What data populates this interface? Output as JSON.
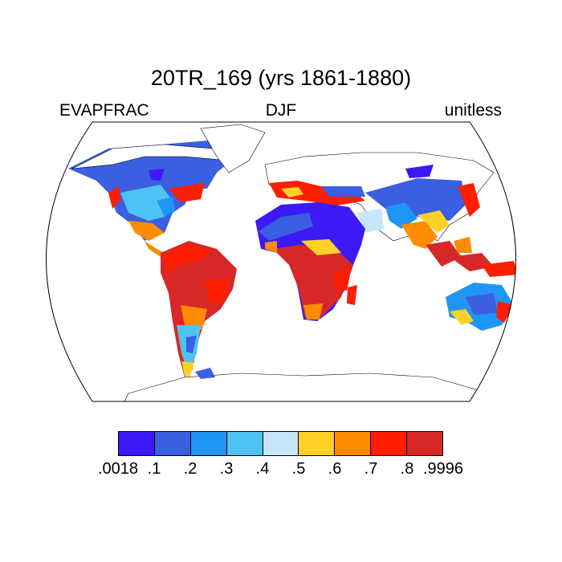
{
  "title": "20TR_169 (yrs 1861-1880)",
  "left_label": "EVAPFRAC",
  "center_label": "DJF",
  "right_label": "unitless",
  "projection": "Robinson",
  "colorbar": {
    "colors": [
      "#3b1af5",
      "#3a5fe0",
      "#1e96f5",
      "#50c3f5",
      "#c8e6fa",
      "#ffd128",
      "#ff8c00",
      "#ff1e00",
      "#d72828"
    ],
    "labels": [
      ".0018",
      ".1",
      ".2",
      ".3",
      ".4",
      ".5",
      ".6",
      ".7",
      ".8",
      ".9996"
    ]
  }
}
